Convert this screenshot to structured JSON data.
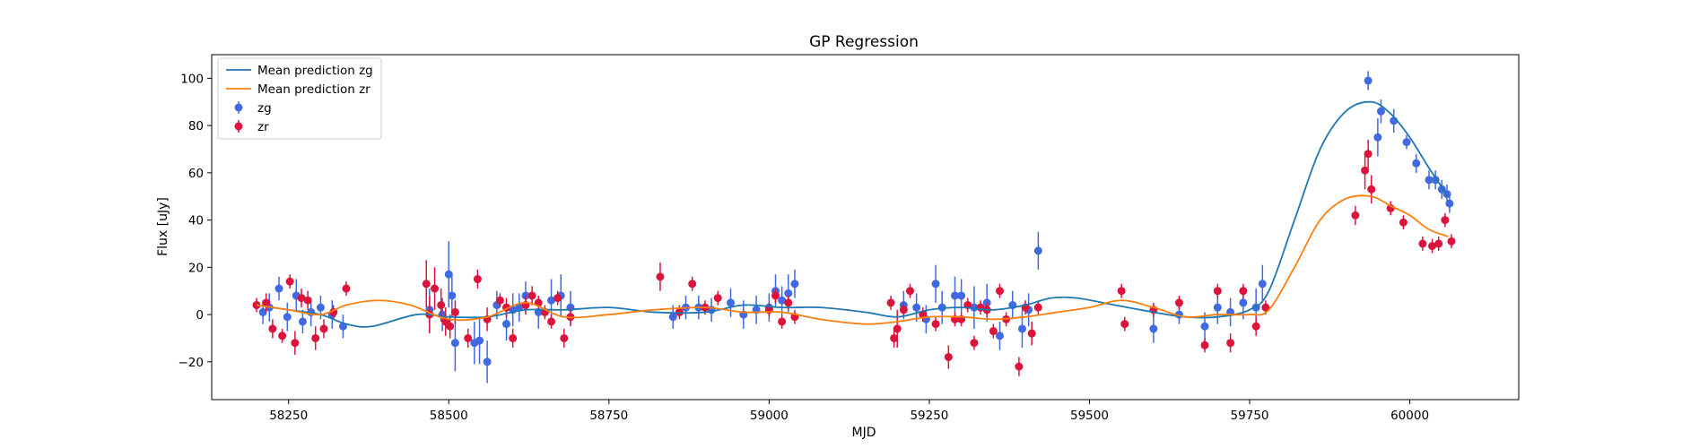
{
  "chart_data": {
    "type": "scatter",
    "title": "GP Regression",
    "xlabel": "MJD",
    "ylabel": "Flux [uJy]",
    "xlim": [
      58130,
      60170
    ],
    "ylim": [
      -36,
      110
    ],
    "xticks": [
      58250,
      58500,
      58750,
      59000,
      59250,
      59500,
      59750,
      60000
    ],
    "yticks": [
      -20,
      0,
      20,
      40,
      60,
      80,
      100
    ],
    "grid": false,
    "legend_position": "top-left",
    "legend": [
      "Mean prediction zg",
      "Mean prediction zr",
      "zg",
      "zr"
    ],
    "colors": {
      "mean_zg": "#1f77b4",
      "mean_zr": "#ff7f0e",
      "zg": "#4169e1",
      "zr": "#dc143c"
    },
    "mean_lines": [
      {
        "name": "Mean prediction zg",
        "color": "#1f77b4",
        "x": [
          58200,
          58250,
          58300,
          58340,
          58380,
          58450,
          58500,
          58560,
          58620,
          58680,
          58750,
          58820,
          58900,
          58960,
          59020,
          59080,
          59150,
          59200,
          59250,
          59300,
          59350,
          59400,
          59440,
          59480,
          59540,
          59600,
          59650,
          59700,
          59750,
          59780,
          59820,
          59860,
          59900,
          59940,
          59970,
          60000,
          60030,
          60060
        ],
        "y": [
          4,
          2,
          0,
          -4,
          -5,
          0,
          -1,
          -1,
          2,
          2,
          3,
          1,
          1,
          4,
          3,
          3,
          1,
          -1,
          2,
          3,
          2,
          4,
          7,
          7,
          4,
          1,
          -1,
          -1,
          2,
          10,
          40,
          70,
          86,
          90,
          85,
          75,
          62,
          50
        ]
      },
      {
        "name": "Mean prediction zr",
        "color": "#ff7f0e",
        "x": [
          58200,
          58250,
          58300,
          58340,
          58390,
          58440,
          58500,
          58560,
          58620,
          58680,
          58750,
          58820,
          58900,
          58960,
          59020,
          59080,
          59150,
          59200,
          59250,
          59300,
          59350,
          59400,
          59450,
          59500,
          59550,
          59600,
          59650,
          59700,
          59750,
          59780,
          59820,
          59860,
          59900,
          59940,
          59970,
          60000,
          60030,
          60060
        ],
        "y": [
          4,
          2,
          0,
          4,
          6,
          4,
          -2,
          -1,
          5,
          -1,
          0,
          2,
          3,
          1,
          1,
          -2,
          -4,
          -3,
          -1,
          -1,
          -2,
          -1,
          1,
          3,
          6,
          3,
          -1,
          0,
          0,
          2,
          20,
          40,
          49,
          50,
          46,
          42,
          36,
          33
        ]
      }
    ],
    "series": [
      {
        "name": "zg",
        "color": "#4169e1",
        "x": [
          58210,
          58220,
          58235,
          58248,
          58262,
          58272,
          58285,
          58300,
          58318,
          58335,
          58470,
          58490,
          58500,
          58505,
          58510,
          58540,
          58548,
          58560,
          58575,
          58590,
          58600,
          58610,
          58620,
          58640,
          58660,
          58675,
          58690,
          58850,
          58870,
          58890,
          58910,
          58940,
          58960,
          58980,
          59000,
          59010,
          59020,
          59030,
          59040,
          59210,
          59230,
          59245,
          59260,
          59270,
          59290,
          59300,
          59320,
          59340,
          59360,
          59380,
          59395,
          59405,
          59420,
          59600,
          59640,
          59680,
          59700,
          59720,
          59740,
          59760,
          59770,
          59935,
          59950,
          59955,
          59975,
          59995,
          60010,
          60030,
          60040,
          60050,
          60058,
          60062
        ],
        "y": [
          1,
          3,
          11,
          -1,
          8,
          -3,
          1,
          3,
          0,
          -5,
          2,
          0,
          17,
          8,
          -12,
          -12,
          -11,
          -20,
          4,
          -4,
          2,
          3,
          8,
          1,
          6,
          8,
          3,
          -1,
          3,
          3,
          2,
          5,
          0,
          2,
          3,
          10,
          6,
          9,
          13,
          4,
          3,
          -2,
          13,
          3,
          8,
          8,
          3,
          5,
          -9,
          4,
          -6,
          2,
          27,
          -6,
          0,
          -5,
          3,
          1,
          5,
          3,
          13,
          99,
          75,
          86,
          82,
          73,
          64,
          57,
          57,
          53,
          51,
          47
        ],
        "yerr": [
          5,
          6,
          5,
          6,
          7,
          5,
          6,
          5,
          6,
          5,
          9,
          7,
          14,
          9,
          12,
          9,
          10,
          9,
          6,
          7,
          7,
          6,
          6,
          7,
          9,
          9,
          7,
          5,
          5,
          5,
          5,
          6,
          6,
          6,
          6,
          7,
          6,
          8,
          6,
          6,
          6,
          6,
          8,
          7,
          8,
          7,
          9,
          8,
          6,
          6,
          8,
          7,
          8,
          6,
          4,
          6,
          7,
          6,
          7,
          8,
          8,
          4,
          8,
          5,
          5,
          3,
          4,
          4,
          4,
          4,
          4,
          4
        ]
      },
      {
        "name": "zr",
        "color": "#dc143c",
        "x": [
          58200,
          58215,
          58225,
          58240,
          58252,
          58260,
          58270,
          58280,
          58292,
          58305,
          58320,
          58340,
          58465,
          58470,
          58478,
          58488,
          58495,
          58502,
          58510,
          58530,
          58545,
          58560,
          58580,
          58590,
          58600,
          58620,
          58630,
          58640,
          58650,
          58660,
          58670,
          58680,
          58690,
          58830,
          58860,
          58880,
          58900,
          58920,
          59000,
          59010,
          59020,
          59030,
          59040,
          59190,
          59195,
          59200,
          59210,
          59220,
          59240,
          59260,
          59280,
          59290,
          59300,
          59310,
          59320,
          59330,
          59340,
          59350,
          59360,
          59370,
          59390,
          59400,
          59410,
          59420,
          59550,
          59555,
          59600,
          59640,
          59680,
          59700,
          59720,
          59740,
          59760,
          59775,
          59915,
          59930,
          59935,
          59940,
          59970,
          59990,
          60020,
          60035,
          60045,
          60055,
          60065
        ],
        "y": [
          4,
          5,
          -6,
          -9,
          14,
          -12,
          7,
          6,
          -10,
          -6,
          1,
          11,
          13,
          0,
          11,
          4,
          -3,
          -5,
          1,
          -10,
          15,
          -2,
          6,
          3,
          -10,
          4,
          8,
          5,
          1,
          -3,
          7,
          -10,
          -1,
          16,
          1,
          13,
          3,
          7,
          2,
          8,
          -3,
          5,
          -1,
          5,
          -10,
          -6,
          2,
          10,
          0,
          -4,
          -18,
          -2,
          -2,
          4,
          -12,
          3,
          2,
          -7,
          10,
          -2,
          -22,
          3,
          -8,
          3,
          10,
          -4,
          2,
          5,
          -13,
          10,
          -12,
          10,
          -5,
          3,
          42,
          61,
          68,
          53,
          45,
          39,
          30,
          29,
          30,
          40,
          31
        ],
        "yerr": [
          3,
          4,
          4,
          3,
          3,
          5,
          4,
          4,
          5,
          4,
          3,
          3,
          10,
          8,
          9,
          7,
          6,
          5,
          5,
          4,
          4,
          5,
          3,
          4,
          4,
          4,
          4,
          3,
          3,
          3,
          3,
          4,
          4,
          6,
          3,
          3,
          3,
          3,
          3,
          3,
          3,
          3,
          3,
          3,
          4,
          8,
          3,
          3,
          3,
          3,
          5,
          3,
          3,
          3,
          3,
          3,
          3,
          3,
          3,
          3,
          4,
          3,
          5,
          3,
          3,
          3,
          3,
          3,
          3,
          3,
          4,
          3,
          4,
          3,
          4,
          8,
          6,
          6,
          3,
          3,
          3,
          3,
          3,
          3,
          3
        ]
      }
    ]
  }
}
